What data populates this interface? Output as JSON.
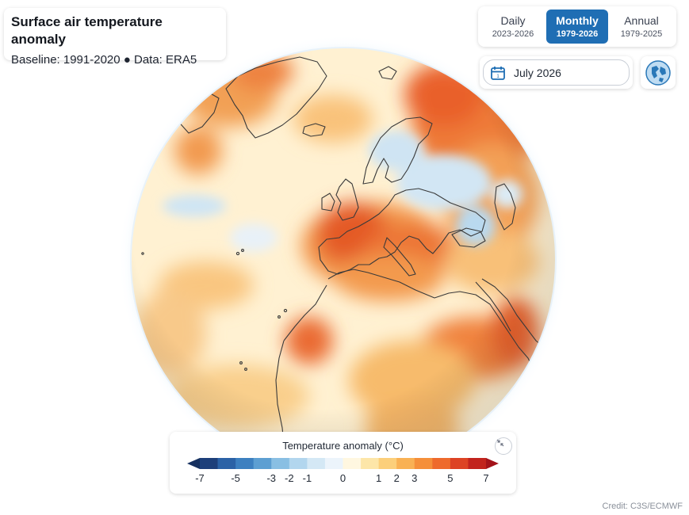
{
  "title": "Surface air temperature anomaly",
  "subtitle": "Baseline: 1991-2020 ● Data: ERA5",
  "period_selector": {
    "options": [
      {
        "label": "Daily",
        "range": "2023-2026",
        "active": false
      },
      {
        "label": "Monthly",
        "range": "1979-2026",
        "active": true
      },
      {
        "label": "Annual",
        "range": "1979-2025",
        "active": false
      }
    ]
  },
  "date_picker": {
    "value": "July 2026",
    "icon": "calendar-icon"
  },
  "projection_button": {
    "icon": "globe-icon"
  },
  "legend": {
    "title": "Temperature anomaly (°C)",
    "tick_labels": [
      "-7",
      "-5",
      "-3",
      "-2",
      "-1",
      "0",
      "1",
      "2",
      "3",
      "5",
      "7"
    ],
    "colors": [
      "#1d3f7a",
      "#2b62a6",
      "#3d80c0",
      "#5d9fd2",
      "#89bfe3",
      "#b2d6ee",
      "#d4e8f5",
      "#ecf4fb",
      "#fff7e0",
      "#fde6a8",
      "#fccf7a",
      "#f9b154",
      "#f58f3a",
      "#ee6a2c",
      "#dd4324",
      "#c2231d"
    ],
    "low_color": "#16305f",
    "high_color": "#a3131a",
    "collapse_icon": "collapse-arrows-icon"
  },
  "credit": "Credit: C3S/ECMWF",
  "colors": {
    "accent": "#1f6eb4",
    "ocean_base": "#fff4dc",
    "coastline": "#3a3a3a"
  }
}
